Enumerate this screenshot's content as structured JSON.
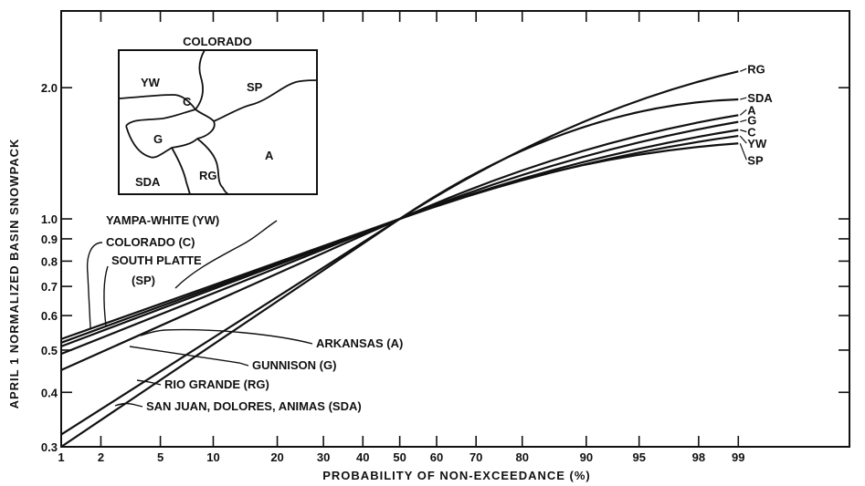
{
  "chart_data": {
    "type": "line",
    "x_scale": "normal-probability",
    "y_scale": "log",
    "xlabel": "PROBABILITY  OF  NON-EXCEEDANCE  (%)",
    "ylabel": "APRIL 1 NORMALIZED BASIN SNOWPACK",
    "xlim": [
      1,
      99.9
    ],
    "ylim": [
      0.3,
      3.0
    ],
    "x_ticks": [
      1,
      2,
      5,
      10,
      20,
      30,
      40,
      50,
      60,
      70,
      80,
      90,
      95,
      98,
      99
    ],
    "x_tick_labels": [
      "1",
      "2",
      "5",
      "10",
      "20",
      "30",
      "40",
      "50",
      "60",
      "70",
      "80",
      "90",
      "95",
      "98",
      "99"
    ],
    "y_ticks": [
      0.3,
      0.4,
      0.5,
      0.6,
      0.7,
      0.8,
      0.9,
      1.0,
      2.0
    ],
    "y_tick_labels": [
      "0.3",
      "0.4",
      "0.5",
      "0.6",
      "0.7",
      "0.8",
      "0.9",
      "1.0",
      "2.0"
    ],
    "series": [
      {
        "name": "RG",
        "x": [
          1,
          50,
          99
        ],
        "y": [
          0.32,
          1.0,
          2.18
        ]
      },
      {
        "name": "SDA",
        "x": [
          1,
          50,
          99
        ],
        "y": [
          0.3,
          1.0,
          1.88
        ]
      },
      {
        "name": "A",
        "x": [
          1,
          50,
          99
        ],
        "y": [
          0.45,
          1.0,
          1.73
        ]
      },
      {
        "name": "G",
        "x": [
          1,
          50,
          99
        ],
        "y": [
          0.49,
          1.0,
          1.67
        ]
      },
      {
        "name": "C",
        "x": [
          1,
          50,
          99
        ],
        "y": [
          0.52,
          1.0,
          1.6
        ]
      },
      {
        "name": "YW",
        "x": [
          1,
          50,
          99
        ],
        "y": [
          0.53,
          1.0,
          1.55
        ]
      },
      {
        "name": "SP",
        "x": [
          1,
          50,
          99
        ],
        "y": [
          0.51,
          1.0,
          1.49
        ]
      }
    ],
    "callouts": [
      {
        "text": "YAMPA-WHITE (YW)",
        "series": "YW"
      },
      {
        "text": "COLORADO (C)",
        "series": "C"
      },
      {
        "text": "SOUTH PLATTE",
        "series": "SP"
      },
      {
        "text": "(SP)",
        "series": "SP"
      },
      {
        "text": "ARKANSAS (A)",
        "series": "A"
      },
      {
        "text": "GUNNISON (G)",
        "series": "G"
      },
      {
        "text": "RIO GRANDE (RG)",
        "series": "RG"
      },
      {
        "text": "SAN JUAN, DOLORES, ANIMAS (SDA)",
        "series": "SDA"
      }
    ],
    "inset_map": {
      "title": "COLORADO",
      "regions": [
        "YW",
        "C",
        "SP",
        "G",
        "A",
        "SDA",
        "RG"
      ]
    },
    "grid": false,
    "legend": "none"
  }
}
